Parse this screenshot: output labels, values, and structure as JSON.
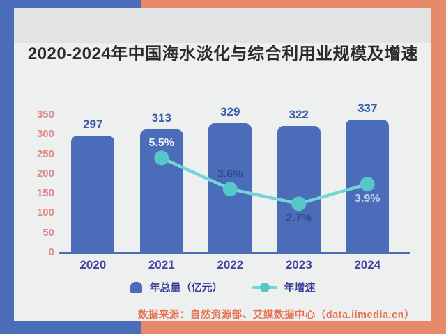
{
  "frame": {
    "left_accent_color": "#4b6db9",
    "right_accent_color": "#e68a69",
    "panel_color": "#eef0f0",
    "panel_top_strip_color": "#e2e3e3"
  },
  "chart_data": {
    "type": "bar+line",
    "title": "2020-2024年中国海水淡化与综合利用业规模及增速",
    "categories": [
      "2020",
      "2021",
      "2022",
      "2023",
      "2024"
    ],
    "series": [
      {
        "name": "年总量（亿元）",
        "type": "bar",
        "values": [
          297,
          313,
          329,
          322,
          337
        ],
        "color": "#4b6db9",
        "value_label_color": "#3a5caa"
      },
      {
        "name": "年增速",
        "type": "line",
        "unit": "%",
        "values": [
          null,
          5.5,
          3.6,
          2.7,
          3.9
        ],
        "labels": [
          null,
          "5.5%",
          "3.6%",
          "2.7%",
          "3.9%"
        ],
        "marker_color": "#55c7c9",
        "line_color": "#73d5da",
        "label_side": [
          null,
          "above",
          "above",
          "below",
          "below"
        ],
        "label_colors": [
          null,
          "#eef3fb",
          "#2e4b8f",
          "#2e4b8f",
          "#c3cfec"
        ]
      }
    ],
    "y_ticks": [
      0,
      50,
      100,
      150,
      200,
      250,
      300,
      350
    ],
    "ylim": [
      0,
      350
    ],
    "y_tick_color": "#dd8a8a",
    "x_label_color": "#44479f",
    "axis_line_color": "#4b6db9",
    "grid": false,
    "legend_position": "bottom"
  },
  "legend": {
    "items": [
      {
        "label": "年总量（亿元）",
        "marker": "bar"
      },
      {
        "label": "年增速",
        "marker": "line-dot"
      }
    ]
  },
  "source": {
    "text": "数据来源：自然资源部、艾媒数据中心（data.iimedia.cn）",
    "color": "#e7714e"
  }
}
